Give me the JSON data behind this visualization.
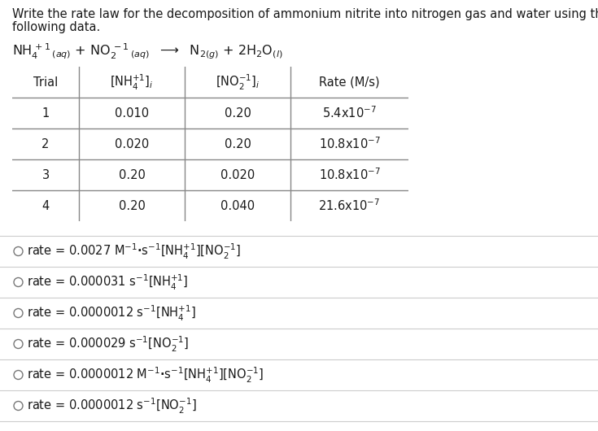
{
  "title_line1": "Write the rate law for the decomposition of ammonium nitrite into nitrogen gas and water using the",
  "title_line2": "following data.",
  "bg_color": "#ffffff",
  "text_color": "#1a1a1a",
  "table_border_color": "#888888",
  "option_line_color": "#cccccc",
  "circle_color": "#777777",
  "title_fontsize": 10.5,
  "eq_fontsize": 11.5,
  "table_fontsize": 10.5,
  "option_fontsize": 10.5
}
